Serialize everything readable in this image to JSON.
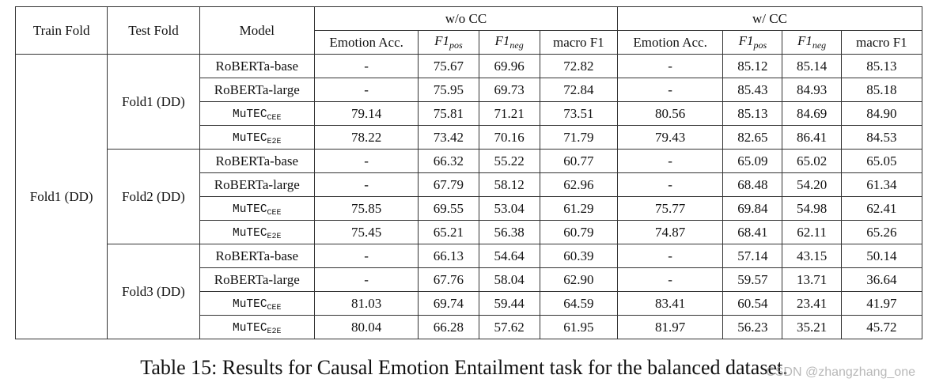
{
  "headers": {
    "train_fold": "Train Fold",
    "test_fold": "Test Fold",
    "model": "Model",
    "group_wo": "w/o CC",
    "group_w": "w/ CC",
    "emotion_acc": "Emotion Acc.",
    "f1_base": "F1",
    "pos": "pos",
    "neg": "neg",
    "macro_f1": "macro F1"
  },
  "train_fold_value": "Fold1 (DD)",
  "groups": [
    {
      "test_fold": "Fold1 (DD)",
      "rows": [
        {
          "model": "RoBERTa-base",
          "mono": false,
          "sub": "",
          "cells": [
            "-",
            "75.67",
            "69.96",
            "72.82",
            "-",
            "85.12",
            "85.14",
            "85.13"
          ],
          "bold": []
        },
        {
          "model": "RoBERTa-large",
          "mono": false,
          "sub": "",
          "cells": [
            "-",
            "75.95",
            "69.73",
            "72.84",
            "-",
            "85.43",
            "84.93",
            "85.18"
          ],
          "bold": [
            1,
            5,
            7
          ]
        },
        {
          "model": "MuTEC",
          "mono": true,
          "sub": "CEE",
          "cells": [
            "79.14",
            "75.81",
            "71.21",
            "73.51",
            "80.56",
            "85.13",
            "84.69",
            "84.90"
          ],
          "bold": [
            2,
            3
          ]
        },
        {
          "model": "MuTEC",
          "mono": true,
          "sub": "E2E",
          "cells": [
            "78.22",
            "73.42",
            "70.16",
            "71.79",
            "79.43",
            "82.65",
            "86.41",
            "84.53"
          ],
          "bold": [
            6
          ]
        }
      ]
    },
    {
      "test_fold": "Fold2 (DD)",
      "rows": [
        {
          "model": "RoBERTa-base",
          "mono": false,
          "sub": "",
          "cells": [
            "-",
            "66.32",
            "55.22",
            "60.77",
            "-",
            "65.09",
            "65.02",
            "65.05"
          ],
          "bold": [
            6
          ]
        },
        {
          "model": "RoBERTa-large",
          "mono": false,
          "sub": "",
          "cells": [
            "-",
            "67.79",
            "58.12",
            "62.96",
            "-",
            "68.48",
            "54.20",
            "61.34"
          ],
          "bold": [
            2,
            3
          ]
        },
        {
          "model": "MuTEC",
          "mono": true,
          "sub": "CEE",
          "cells": [
            "75.85",
            "69.55",
            "53.04",
            "61.29",
            "75.77",
            "69.84",
            "54.98",
            "62.41"
          ],
          "bold": [
            1,
            5
          ]
        },
        {
          "model": "MuTEC",
          "mono": true,
          "sub": "E2E",
          "cells": [
            "75.45",
            "65.21",
            "56.38",
            "60.79",
            "74.87",
            "68.41",
            "62.11",
            "65.26"
          ],
          "bold": [
            7
          ]
        }
      ]
    },
    {
      "test_fold": "Fold3 (DD)",
      "rows": [
        {
          "model": "RoBERTa-base",
          "mono": false,
          "sub": "",
          "cells": [
            "-",
            "66.13",
            "54.64",
            "60.39",
            "-",
            "57.14",
            "43.15",
            "50.14"
          ],
          "bold": [
            6,
            7
          ]
        },
        {
          "model": "RoBERTa-large",
          "mono": false,
          "sub": "",
          "cells": [
            "-",
            "67.76",
            "58.04",
            "62.90",
            "-",
            "59.57",
            "13.71",
            "36.64"
          ],
          "bold": []
        },
        {
          "model": "MuTEC",
          "mono": true,
          "sub": "CEE",
          "cells": [
            "81.03",
            "69.74",
            "59.44",
            "64.59",
            "83.41",
            "60.54",
            "23.41",
            "41.97"
          ],
          "bold": [
            1,
            2,
            3,
            5
          ]
        },
        {
          "model": "MuTEC",
          "mono": true,
          "sub": "E2E",
          "cells": [
            "80.04",
            "66.28",
            "57.62",
            "61.95",
            "81.97",
            "56.23",
            "35.21",
            "45.72"
          ],
          "bold": []
        }
      ]
    }
  ],
  "caption": "Table 15: Results for Causal Emotion Entailment task for the balanced dataset.",
  "watermark": "CSDN @zhangzhang_one"
}
